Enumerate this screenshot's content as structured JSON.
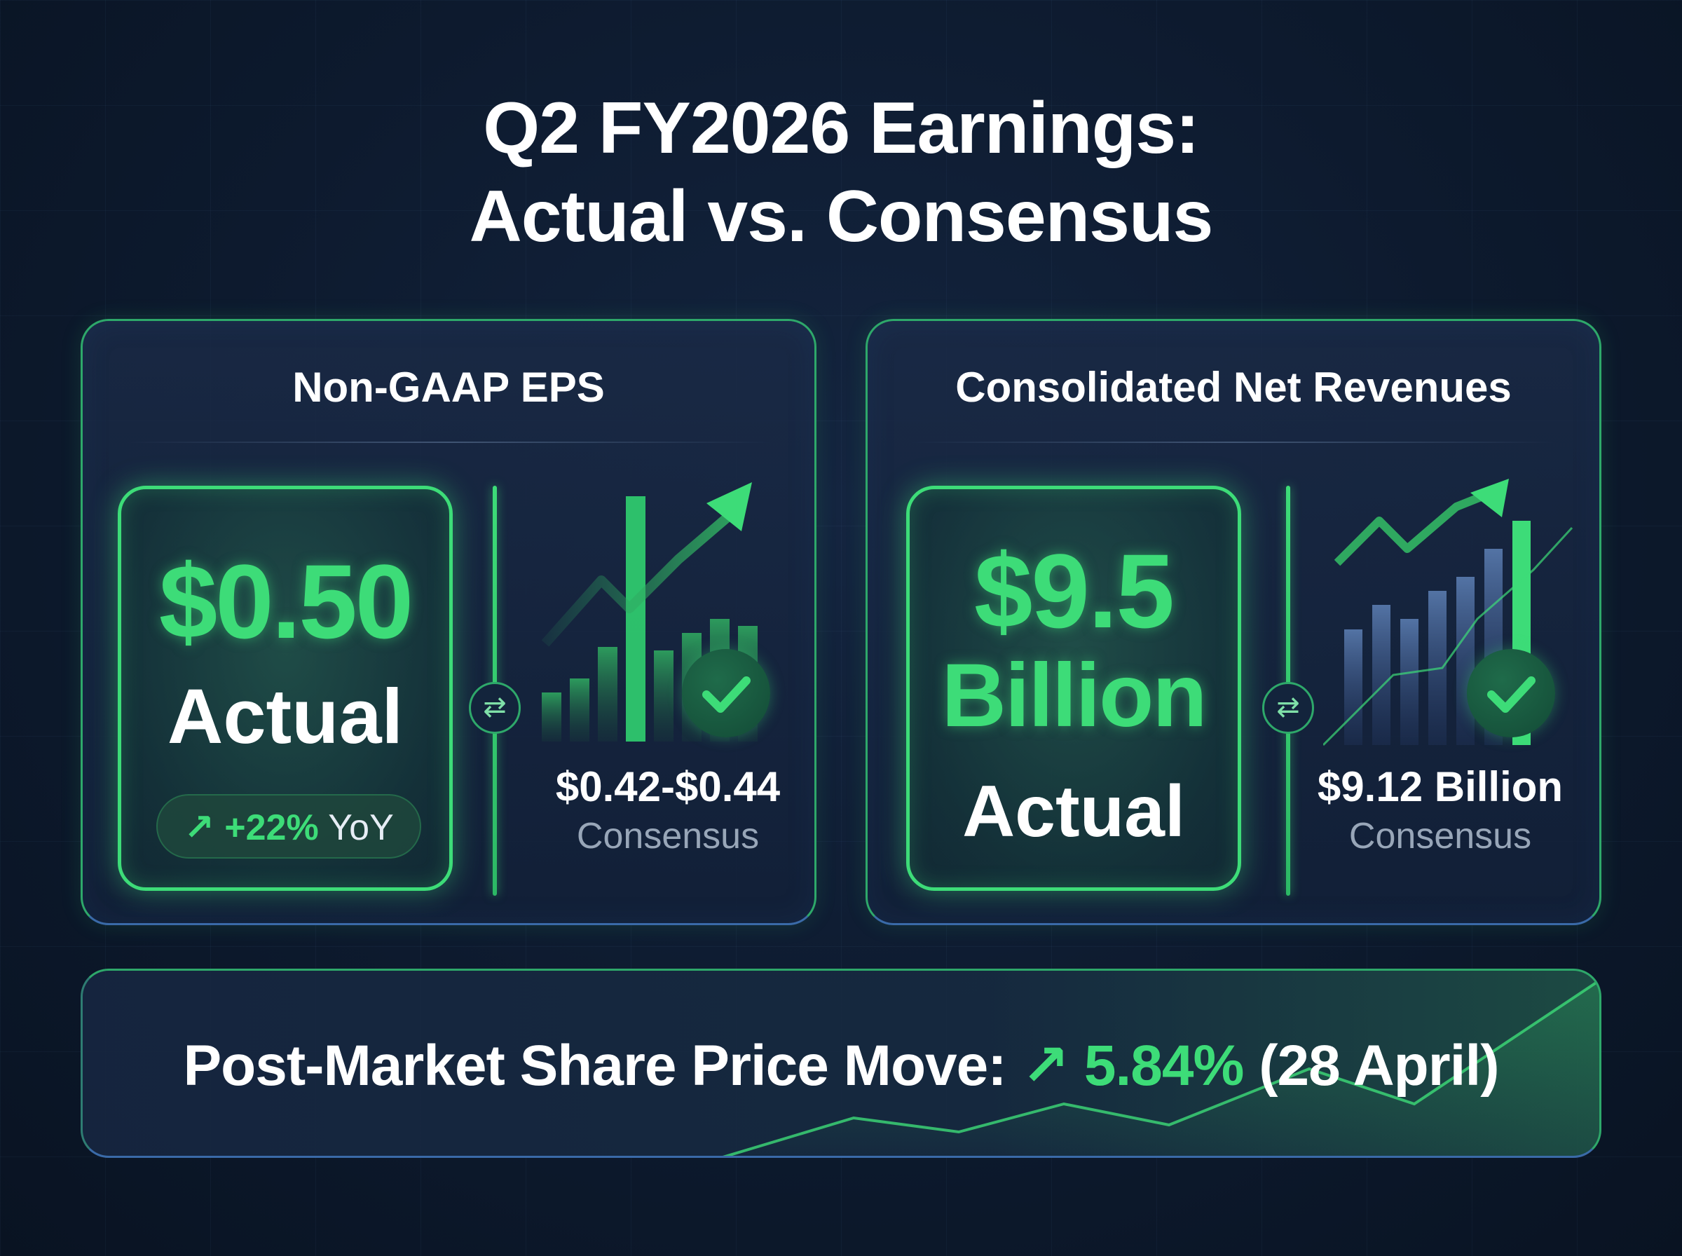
{
  "title": {
    "line1": "Q2 FY2026 Earnings:",
    "line2": "Actual vs. Consensus"
  },
  "eps_card": {
    "title": "Non-GAAP EPS",
    "actual_value": "$0.50",
    "actual_label": "Actual",
    "yoy_arrow": "↗",
    "yoy_change": "+22%",
    "yoy_suffix": "YoY",
    "consensus_value": "$0.42-$0.44",
    "consensus_label": "Consensus"
  },
  "revenue_card": {
    "title": "Consolidated Net Revenues",
    "actual_value": "$9.5",
    "actual_unit": "Billion",
    "actual_label": "Actual",
    "consensus_value": "$9.12 Billion",
    "consensus_label": "Consensus"
  },
  "share_price": {
    "label": "Post-Market Share Price Move:",
    "arrow": "↗",
    "change": "5.84%",
    "date": "(28 April)"
  },
  "colors": {
    "accent_green": "#3ddc78",
    "background": "#0d1a2e",
    "card_border": "#2ea86a",
    "muted_text": "#98a6b8"
  },
  "icons": {
    "swap": "swap-arrows-icon",
    "check": "checkmark-icon",
    "trend": "trend-up-icon"
  }
}
